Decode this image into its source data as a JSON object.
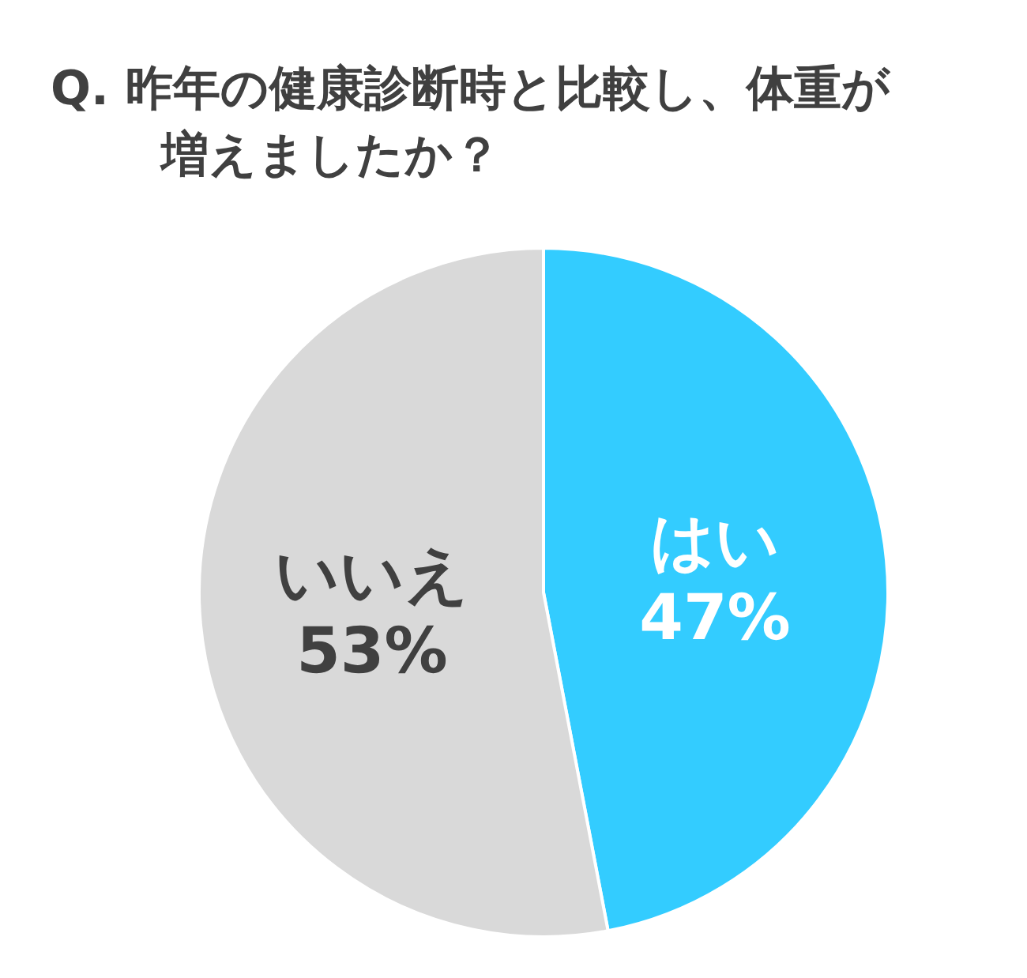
{
  "chart_data": {
    "type": "pie",
    "title": "Q. 昨年の健康診断時と比較し、体重が増えましたか？",
    "categories": [
      "はい",
      "いいえ"
    ],
    "values": [
      47,
      53
    ],
    "value_labels": [
      "47%",
      "53%"
    ],
    "colors": [
      "#33ccff",
      "#d9d9d9"
    ],
    "legend": false
  }
}
